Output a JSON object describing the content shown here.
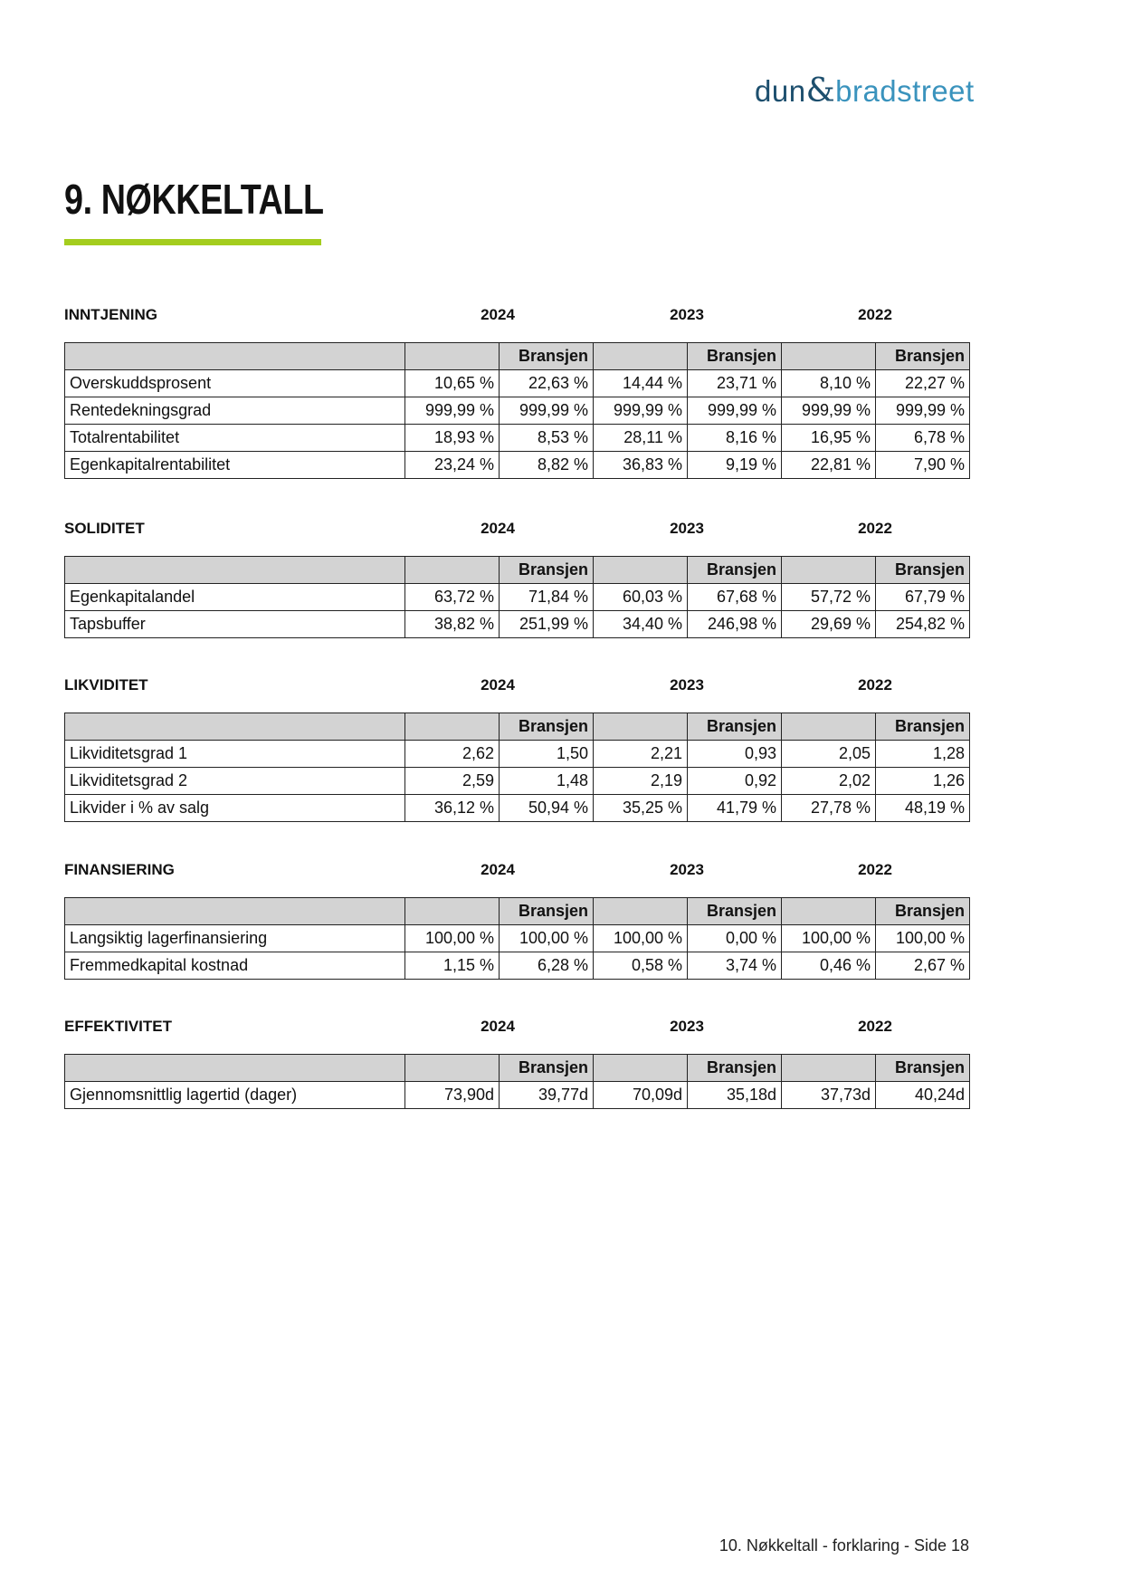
{
  "logo": {
    "part1": "dun",
    "amp": "&",
    "part2": "bradstreet"
  },
  "page_title": "9. NØKKELTALL",
  "accent_color": "#a4cd1e",
  "years": [
    "2024",
    "2023",
    "2022"
  ],
  "industry_label": "Bransjen",
  "sections": [
    {
      "name": "INNTJENING",
      "rows": [
        {
          "label": "Overskuddsprosent",
          "values": [
            "10,65 %",
            "22,63 %",
            "14,44 %",
            "23,71 %",
            "8,10 %",
            "22,27 %"
          ]
        },
        {
          "label": "Rentedekningsgrad",
          "values": [
            "999,99 %",
            "999,99 %",
            "999,99 %",
            "999,99 %",
            "999,99 %",
            "999,99 %"
          ]
        },
        {
          "label": "Totalrentabilitet",
          "values": [
            "18,93 %",
            "8,53 %",
            "28,11 %",
            "8,16 %",
            "16,95 %",
            "6,78 %"
          ]
        },
        {
          "label": "Egenkapitalrentabilitet",
          "values": [
            "23,24 %",
            "8,82 %",
            "36,83 %",
            "9,19 %",
            "22,81 %",
            "7,90 %"
          ]
        }
      ]
    },
    {
      "name": "SOLIDITET",
      "rows": [
        {
          "label": "Egenkapitalandel",
          "values": [
            "63,72 %",
            "71,84 %",
            "60,03 %",
            "67,68 %",
            "57,72 %",
            "67,79 %"
          ]
        },
        {
          "label": "Tapsbuffer",
          "values": [
            "38,82 %",
            "251,99 %",
            "34,40 %",
            "246,98 %",
            "29,69 %",
            "254,82 %"
          ]
        }
      ]
    },
    {
      "name": "LIKVIDITET",
      "rows": [
        {
          "label": "Likviditetsgrad 1",
          "values": [
            "2,62",
            "1,50",
            "2,21",
            "0,93",
            "2,05",
            "1,28"
          ]
        },
        {
          "label": "Likviditetsgrad 2",
          "values": [
            "2,59",
            "1,48",
            "2,19",
            "0,92",
            "2,02",
            "1,26"
          ]
        },
        {
          "label": "Likvider i % av salg",
          "values": [
            "36,12 %",
            "50,94 %",
            "35,25 %",
            "41,79 %",
            "27,78 %",
            "48,19 %"
          ]
        }
      ]
    },
    {
      "name": "FINANSIERING",
      "rows": [
        {
          "label": "Langsiktig lagerfinansiering",
          "values": [
            "100,00 %",
            "100,00 %",
            "100,00 %",
            "0,00 %",
            "100,00 %",
            "100,00 %"
          ]
        },
        {
          "label": "Fremmedkapital kostnad",
          "values": [
            "1,15 %",
            "6,28 %",
            "0,58 %",
            "3,74 %",
            "0,46 %",
            "2,67 %"
          ]
        }
      ]
    },
    {
      "name": "EFFEKTIVITET",
      "rows": [
        {
          "label": "Gjennomsnittlig lagertid (dager)",
          "values": [
            "73,90d",
            "39,77d",
            "70,09d",
            "35,18d",
            "37,73d",
            "40,24d"
          ]
        }
      ]
    }
  ],
  "footer": "10. Nøkkeltall - forklaring - Side 18"
}
